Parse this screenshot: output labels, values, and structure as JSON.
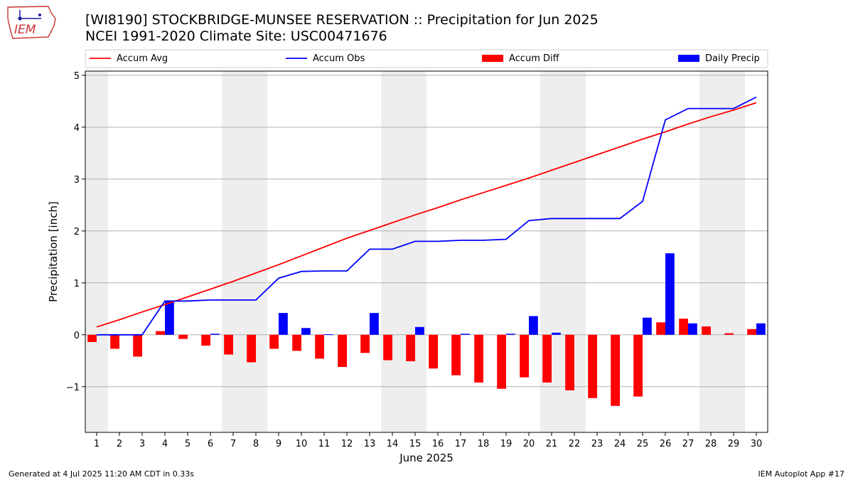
{
  "header": {
    "title_line1": "[WI8190] STOCKBRIDGE-MUNSEE RESERVATION :: Precipitation for Jun 2025",
    "title_line2": "NCEI 1991-2020 Climate Site: USC00471676",
    "logo_text": "IEM"
  },
  "footer": {
    "generated": "Generated at 4 Jul 2025 11:20 AM CDT in 0.33s",
    "app": "IEM Autoplot App #17"
  },
  "colors": {
    "avg": "#ff0000",
    "obs": "#0000ff",
    "diff": "#ff0000",
    "daily": "#0000ff",
    "weekend_shade": "#eeeeee",
    "grid": "#b0b0b0"
  },
  "chart_data": {
    "type": "bar",
    "title": "[WI8190] STOCKBRIDGE-MUNSEE RESERVATION :: Precipitation for Jun 2025",
    "xlabel": "June 2025",
    "ylabel": "Precipitation [inch]",
    "days": [
      1,
      2,
      3,
      4,
      5,
      6,
      7,
      8,
      9,
      10,
      11,
      12,
      13,
      14,
      15,
      16,
      17,
      18,
      19,
      20,
      21,
      22,
      23,
      24,
      25,
      26,
      27,
      28,
      29,
      30
    ],
    "xticks": [
      "1",
      "2",
      "3",
      "4",
      "5",
      "6",
      "7",
      "8",
      "9",
      "10",
      "11",
      "12",
      "13",
      "14",
      "15",
      "16",
      "17",
      "18",
      "19",
      "20",
      "21",
      "22",
      "23",
      "24",
      "25",
      "26",
      "27",
      "28",
      "29",
      "30"
    ],
    "ylim": [
      -1.88,
      5.08
    ],
    "yticks": [
      -1,
      0,
      1,
      2,
      3,
      4,
      5
    ],
    "ytick_labels": [
      "−1",
      "0",
      "1",
      "2",
      "3",
      "4",
      "5"
    ],
    "grid": "horizontal",
    "shaded_day_ranges": [
      [
        1,
        1
      ],
      [
        7,
        8
      ],
      [
        14,
        15
      ],
      [
        21,
        22
      ],
      [
        28,
        29
      ]
    ],
    "legend": {
      "placement": "top",
      "entries": [
        "Accum Avg",
        "Accum Obs",
        "Accum Diff",
        "Daily Precip"
      ]
    },
    "series": [
      {
        "name": "Accum Avg",
        "kind": "line",
        "values": [
          0.15,
          0.29,
          0.44,
          0.58,
          0.73,
          0.88,
          1.03,
          1.19,
          1.35,
          1.52,
          1.69,
          1.86,
          2.01,
          2.16,
          2.31,
          2.45,
          2.6,
          2.74,
          2.88,
          3.02,
          3.17,
          3.32,
          3.47,
          3.62,
          3.77,
          3.91,
          4.06,
          4.2,
          4.33,
          4.47
        ]
      },
      {
        "name": "Accum Obs",
        "kind": "line",
        "values": [
          0.0,
          0.0,
          0.0,
          0.65,
          0.65,
          0.67,
          0.67,
          0.67,
          1.09,
          1.22,
          1.23,
          1.23,
          1.65,
          1.65,
          1.8,
          1.8,
          1.82,
          1.82,
          1.84,
          2.2,
          2.24,
          2.24,
          2.24,
          2.24,
          2.57,
          4.14,
          4.36,
          4.36,
          4.36,
          4.58
        ]
      },
      {
        "name": "Accum Diff",
        "kind": "bar",
        "values": [
          -0.14,
          -0.27,
          -0.42,
          0.07,
          -0.08,
          -0.21,
          -0.38,
          -0.53,
          -0.27,
          -0.31,
          -0.46,
          -0.62,
          -0.35,
          -0.49,
          -0.51,
          -0.65,
          -0.78,
          -0.92,
          -1.04,
          -0.82,
          -0.92,
          -1.07,
          -1.22,
          -1.37,
          -1.19,
          0.24,
          0.31,
          0.16,
          0.03,
          0.11
        ]
      },
      {
        "name": "Daily Precip",
        "kind": "bar",
        "values": [
          0.0,
          0.0,
          0.0,
          0.65,
          0.0,
          0.02,
          0.0,
          0.0,
          0.42,
          0.13,
          0.01,
          0.0,
          0.42,
          0.0,
          0.15,
          0.0,
          0.02,
          0.0,
          0.02,
          0.36,
          0.04,
          0.0,
          0.0,
          0.0,
          0.33,
          1.57,
          0.22,
          0.0,
          0.0,
          0.22
        ]
      }
    ]
  }
}
